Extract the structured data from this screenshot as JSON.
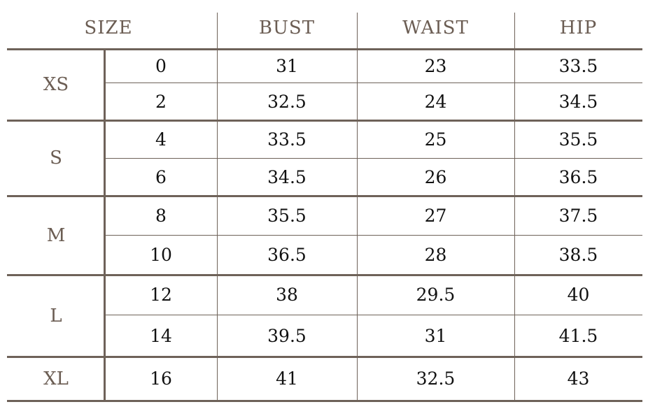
{
  "headers": {
    "size": "SIZE",
    "bust": "BUST",
    "waist": "WAIST",
    "hip": "HIP"
  },
  "groups": [
    {
      "label": "XS",
      "rows": [
        {
          "size": "0",
          "bust": "31",
          "waist": "23",
          "hip": "33.5"
        },
        {
          "size": "2",
          "bust": "32.5",
          "waist": "24",
          "hip": "34.5"
        }
      ]
    },
    {
      "label": "S",
      "rows": [
        {
          "size": "4",
          "bust": "33.5",
          "waist": "25",
          "hip": "35.5"
        },
        {
          "size": "6",
          "bust": "34.5",
          "waist": "26",
          "hip": "36.5"
        }
      ]
    },
    {
      "label": "M",
      "rows": [
        {
          "size": "8",
          "bust": "35.5",
          "waist": "27",
          "hip": "37.5"
        },
        {
          "size": "10",
          "bust": "36.5",
          "waist": "28",
          "hip": "38.5"
        }
      ]
    },
    {
      "label": "L",
      "rows": [
        {
          "size": "12",
          "bust": "38",
          "waist": "29.5",
          "hip": "40"
        },
        {
          "size": "14",
          "bust": "39.5",
          "waist": "31",
          "hip": "41.5"
        }
      ]
    },
    {
      "label": "XL",
      "rows": [
        {
          "size": "16",
          "bust": "41",
          "waist": "32.5",
          "hip": "43"
        }
      ]
    }
  ],
  "colors": {
    "line": "#6e6259",
    "header_text": "#6b5d53",
    "value_text": "#111111"
  }
}
